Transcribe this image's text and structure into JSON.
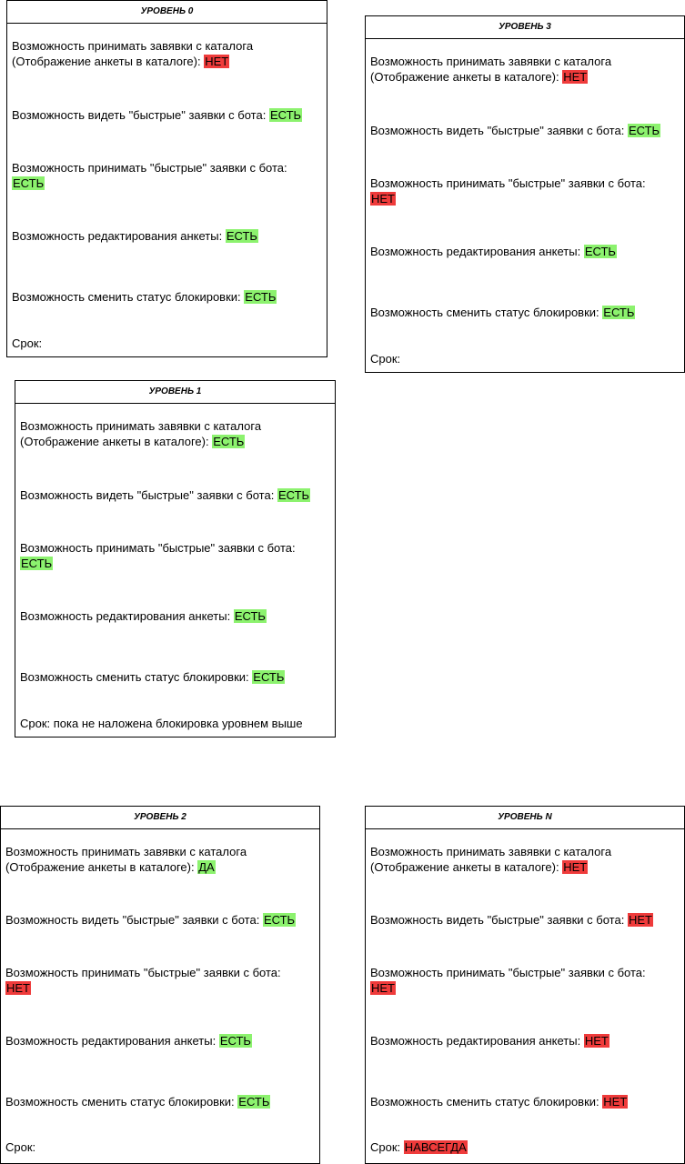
{
  "colors": {
    "yes": "#8cf26e",
    "no": "#ef3b3b",
    "border": "#000000"
  },
  "levels": [
    {
      "title": "УРОВЕНЬ 0",
      "catalog_label": "Возможность принимать завявки с каталога",
      "catalog_label2": "(Отображение анкеты в каталоге):",
      "catalog_value": "НЕТ",
      "see_label": "Возможность видеть \"быстрые\" заявки с бота:",
      "see_value": "ЕСТЬ",
      "accept_label": "Возможность принимать \"быстрые\" заявки с бота:",
      "accept_value": "ЕСТЬ",
      "edit_label": "Возможность редактирования анкеты:",
      "edit_value": "ЕСТЬ",
      "block_label": "Возможность сменить статус блокировки:",
      "block_value": "ЕСТЬ",
      "term_label": "Срок:",
      "term_value": ""
    },
    {
      "title": "УРОВЕНЬ 3",
      "catalog_label": "Возможность принимать завявки с каталога",
      "catalog_label2": "(Отображение анкеты в каталоге):",
      "catalog_value": "НЕТ",
      "see_label": "Возможность видеть \"быстрые\" заявки с бота:",
      "see_value": "ЕСТЬ",
      "accept_label": "Возможность принимать \"быстрые\" заявки с бота:",
      "accept_value": "НЕТ",
      "edit_label": "Возможность редактирования анкеты:",
      "edit_value": "ЕСТЬ",
      "block_label": "Возможность сменить статус блокировки:",
      "block_value": "ЕСТЬ",
      "term_label": "Срок:",
      "term_value": ""
    },
    {
      "title": "УРОВЕНЬ 1",
      "catalog_label": "Возможность принимать завявки с каталога",
      "catalog_label2": "(Отображение анкеты в каталоге):",
      "catalog_value": "ЕСТЬ",
      "see_label": "Возможность видеть \"быстрые\" заявки с бота:",
      "see_value": "ЕСТЬ",
      "accept_label": "Возможность принимать \"быстрые\" заявки с бота:",
      "accept_value": "ЕСТЬ",
      "edit_label": "Возможность редактирования анкеты:",
      "edit_value": "ЕСТЬ",
      "block_label": "Возможность сменить статус блокировки:",
      "block_value": "ЕСТЬ",
      "term_label": "Срок: пока не наложена блокировка уровнем выше",
      "term_value": ""
    },
    {
      "title": "УРОВЕНЬ 2",
      "catalog_label": "Возможность принимать завявки с каталога",
      "catalog_label2": "(Отображение анкеты в каталоге):",
      "catalog_value": "ДА",
      "see_label": "Возможность видеть \"быстрые\" заявки с бота:",
      "see_value": "ЕСТЬ",
      "accept_label": "Возможность принимать \"быстрые\" заявки с бота:",
      "accept_value": "НЕТ",
      "edit_label": "Возможность редактирования анкеты:",
      "edit_value": "ЕСТЬ",
      "block_label": "Возможность сменить статус блокировки:",
      "block_value": "ЕСТЬ",
      "term_label": "Срок:",
      "term_value": ""
    },
    {
      "title": "УРОВЕНЬ N",
      "catalog_label": "Возможность принимать завявки с каталога",
      "catalog_label2": "(Отображение анкеты в каталоге):",
      "catalog_value": "НЕТ",
      "see_label": "Возможность видеть \"быстрые\" заявки с бота:",
      "see_value": "НЕТ",
      "accept_label": "Возможность принимать \"быстрые\" заявки с бота:",
      "accept_value": "НЕТ",
      "edit_label": "Возможность редактирования анкеты:",
      "edit_value": "НЕТ",
      "block_label": "Возможность сменить статус блокировки:",
      "block_value": "НЕТ",
      "term_label": "Срок:",
      "term_value": "НАВСЕГДА"
    }
  ]
}
